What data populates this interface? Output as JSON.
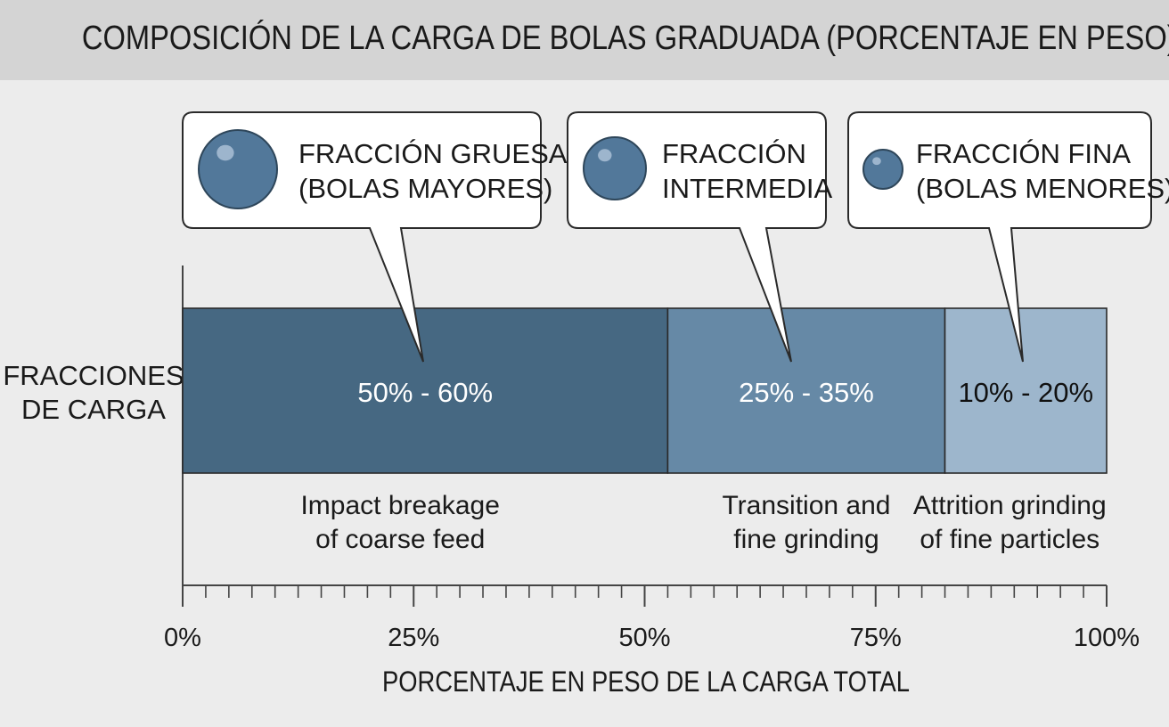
{
  "title": "COMPOSICIÓN DE LA CARGA DE BOLAS GRADUADA (PORCENTAJE EN PESO)",
  "colors": {
    "coarse": "#466882",
    "intermediate": "#6689a6",
    "fine": "#9db6cc",
    "header_bg": "#d4d4d4",
    "page_bg": "#ececec",
    "ball": "#52789a"
  },
  "chart_data": {
    "type": "bar",
    "orientation": "horizontal-stacked",
    "ylabel_lines": [
      "FRACCIONES",
      "DE CARGA"
    ],
    "xlabel": "PORCENTAJE EN PESO DE LA CARGA TOTAL",
    "xlim": [
      0,
      100
    ],
    "x_ticks": [
      {
        "value": 0,
        "label": "0%"
      },
      {
        "value": 25,
        "label": "25%"
      },
      {
        "value": 50,
        "label": "50%"
      },
      {
        "value": 75,
        "label": "75%"
      },
      {
        "value": 100,
        "label": "100%"
      }
    ],
    "minor_tick_step": 2.5,
    "segments": [
      {
        "key": "coarse",
        "start": 0,
        "end": 52.5,
        "range_label": "50% - 60%",
        "description_lines": [
          "Impact breakage",
          "of coarse feed"
        ],
        "callout_lines": [
          "FRACCIÓN GRUESA",
          "(BOLAS MAYORES)"
        ],
        "ball_size": "large",
        "color_key": "coarse",
        "text_color": "#ffffff"
      },
      {
        "key": "intermediate",
        "start": 52.5,
        "end": 82.5,
        "range_label": "25% - 35%",
        "description_lines": [
          "Transition and",
          "fine grinding"
        ],
        "callout_lines": [
          "FRACCIÓN",
          "INTERMEDIA"
        ],
        "ball_size": "medium",
        "color_key": "intermediate",
        "text_color": "#ffffff"
      },
      {
        "key": "fine",
        "start": 82.5,
        "end": 100,
        "range_label": "10% - 20%",
        "description_lines": [
          "Attrition grinding",
          "of fine particles"
        ],
        "callout_lines": [
          "FRACCIÓN FINA",
          "(BOLAS MENORES)"
        ],
        "ball_size": "small",
        "color_key": "fine",
        "text_color": "#111111"
      }
    ]
  }
}
